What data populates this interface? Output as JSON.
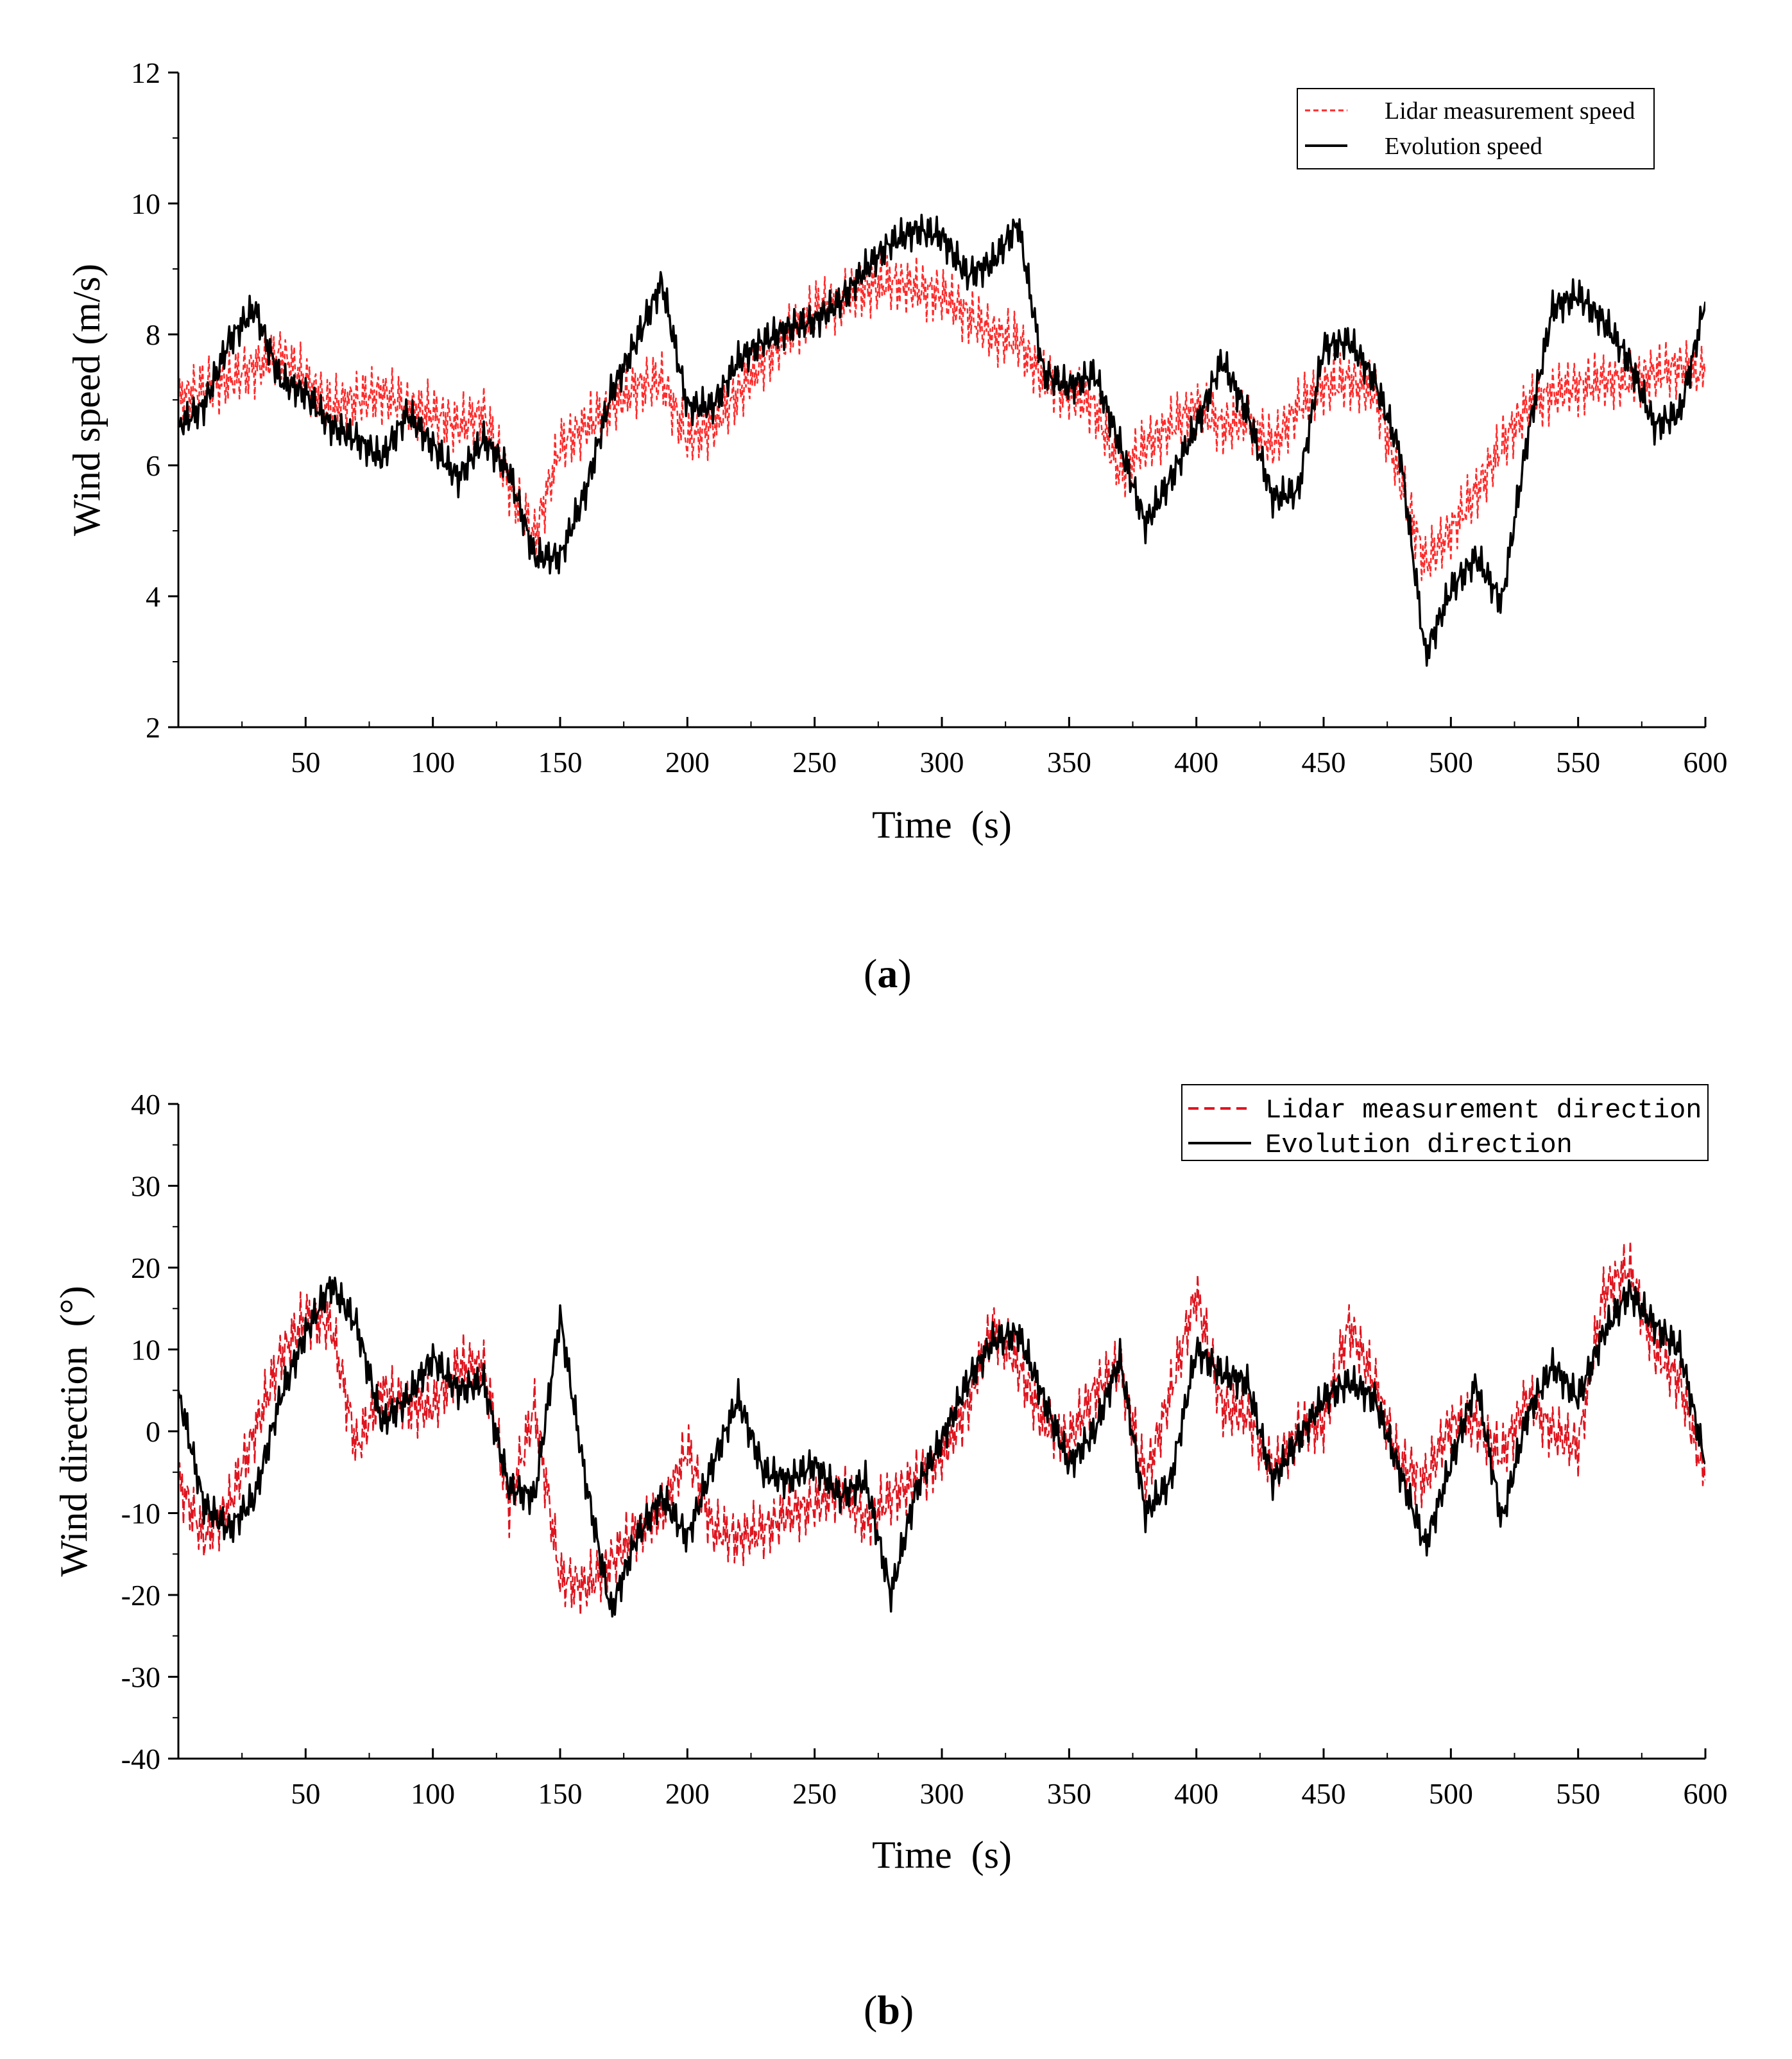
{
  "chart_data": [
    {
      "type": "line",
      "panel": "a",
      "xlabel": "Time  (s)",
      "ylabel": "Wind speed (m/s)",
      "xlim": [
        0,
        600
      ],
      "ylim": [
        2,
        12
      ],
      "xticks": [
        50,
        100,
        150,
        200,
        250,
        300,
        350,
        400,
        450,
        500,
        550,
        600
      ],
      "yticks": [
        2,
        4,
        6,
        8,
        10,
        12
      ],
      "grid": false,
      "legend_position": "top-right",
      "series": [
        {
          "name": "Lidar measurement speed",
          "color": "#ff2a2a",
          "style": "dashed",
          "x": [
            0,
            10,
            20,
            30,
            40,
            50,
            60,
            70,
            80,
            90,
            100,
            110,
            120,
            130,
            140,
            150,
            160,
            170,
            180,
            190,
            200,
            210,
            220,
            230,
            240,
            250,
            260,
            270,
            280,
            290,
            300,
            310,
            320,
            330,
            340,
            350,
            360,
            370,
            380,
            390,
            400,
            410,
            420,
            430,
            440,
            450,
            460,
            470,
            480,
            490,
            500,
            510,
            520,
            530,
            540,
            550,
            560,
            570,
            580,
            590,
            600
          ],
          "values": [
            7.0,
            7.2,
            7.3,
            7.5,
            7.7,
            7.3,
            6.9,
            7.0,
            7.1,
            6.9,
            6.8,
            6.6,
            6.8,
            5.7,
            4.9,
            6.3,
            6.6,
            6.9,
            7.2,
            7.3,
            6.4,
            6.6,
            7.1,
            7.6,
            8.0,
            8.4,
            8.5,
            8.7,
            8.8,
            8.7,
            8.6,
            8.3,
            8.0,
            7.9,
            7.3,
            7.1,
            6.9,
            5.9,
            6.3,
            6.6,
            6.9,
            6.6,
            6.7,
            6.3,
            6.9,
            7.2,
            7.3,
            7.1,
            5.8,
            4.5,
            5.0,
            5.6,
            6.3,
            6.9,
            7.1,
            7.2,
            7.3,
            7.3,
            7.4,
            7.5,
            7.4
          ]
        },
        {
          "name": "Evolution speed",
          "color": "#000000",
          "style": "solid",
          "x": [
            0,
            10,
            20,
            30,
            40,
            50,
            60,
            70,
            80,
            90,
            100,
            110,
            120,
            130,
            140,
            150,
            160,
            170,
            180,
            190,
            200,
            210,
            220,
            230,
            240,
            250,
            260,
            270,
            280,
            290,
            300,
            310,
            320,
            330,
            340,
            350,
            360,
            370,
            380,
            390,
            400,
            410,
            420,
            430,
            440,
            450,
            460,
            470,
            480,
            490,
            500,
            510,
            520,
            530,
            540,
            550,
            560,
            570,
            580,
            590,
            600
          ],
          "values": [
            6.6,
            6.9,
            7.9,
            8.4,
            7.3,
            7.1,
            6.6,
            6.4,
            6.1,
            6.8,
            6.3,
            5.8,
            6.4,
            5.9,
            4.6,
            4.6,
            5.6,
            7.1,
            7.9,
            8.8,
            6.9,
            6.9,
            7.6,
            7.9,
            8.1,
            8.2,
            8.5,
            9.0,
            9.4,
            9.6,
            9.5,
            8.9,
            9.1,
            9.7,
            7.4,
            7.2,
            7.4,
            6.3,
            5.1,
            5.8,
            6.6,
            7.6,
            6.8,
            5.5,
            5.6,
            7.8,
            7.9,
            7.3,
            6.2,
            3.1,
            4.1,
            4.6,
            3.9,
            6.4,
            8.4,
            8.6,
            8.2,
            7.6,
            6.6,
            6.8,
            8.5
          ]
        }
      ]
    },
    {
      "type": "line",
      "panel": "b",
      "xlabel": "Time  (s)",
      "ylabel": "Wind direction  (°)",
      "xlim": [
        0,
        600
      ],
      "ylim": [
        -40,
        40
      ],
      "xticks": [
        50,
        100,
        150,
        200,
        250,
        300,
        350,
        400,
        450,
        500,
        550,
        600
      ],
      "yticks": [
        -40,
        -30,
        -20,
        -10,
        0,
        10,
        20,
        30,
        40
      ],
      "grid": false,
      "legend_position": "top-right",
      "series": [
        {
          "name": "Lidar measurement direction",
          "color": "#e0141e",
          "style": "dashed",
          "x": [
            0,
            10,
            20,
            30,
            40,
            50,
            60,
            70,
            80,
            90,
            100,
            110,
            120,
            130,
            140,
            150,
            160,
            170,
            180,
            190,
            200,
            210,
            220,
            230,
            240,
            250,
            260,
            270,
            280,
            290,
            300,
            310,
            320,
            330,
            340,
            350,
            360,
            370,
            380,
            390,
            400,
            410,
            420,
            430,
            440,
            450,
            460,
            470,
            480,
            490,
            500,
            510,
            520,
            530,
            540,
            550,
            560,
            570,
            580,
            590,
            600
          ],
          "values": [
            -6,
            -13,
            -9,
            0,
            9,
            14,
            13,
            -2,
            5,
            3,
            3,
            8,
            8,
            -9,
            3,
            -18,
            -19,
            -16,
            -12,
            -10,
            -2,
            -12,
            -13,
            -12,
            -10,
            -9,
            -7,
            -11,
            -8,
            -6,
            -3,
            3,
            13,
            8,
            1,
            -1,
            5,
            8,
            -6,
            5,
            17,
            3,
            2,
            -5,
            0,
            1,
            13,
            6,
            -4,
            -6,
            1,
            1,
            -3,
            4,
            0,
            -2,
            17,
            20,
            10,
            6,
            -6
          ]
        },
        {
          "name": "Evolution direction",
          "color": "#000000",
          "style": "solid",
          "x": [
            0,
            10,
            20,
            30,
            40,
            50,
            60,
            70,
            80,
            90,
            100,
            110,
            120,
            130,
            140,
            150,
            160,
            170,
            180,
            190,
            200,
            210,
            220,
            230,
            240,
            250,
            260,
            270,
            280,
            290,
            300,
            310,
            320,
            330,
            340,
            350,
            360,
            370,
            380,
            390,
            400,
            410,
            420,
            430,
            440,
            450,
            460,
            470,
            480,
            490,
            500,
            510,
            520,
            530,
            540,
            550,
            560,
            570,
            580,
            590,
            600
          ],
          "values": [
            5,
            -9,
            -12,
            -8,
            4,
            12,
            18,
            13,
            1,
            4,
            9,
            5,
            6,
            -7,
            -8,
            14,
            -6,
            -22,
            -13,
            -8,
            -13,
            -4,
            4,
            -5,
            -6,
            -4,
            -8,
            -6,
            -20,
            -7,
            -1,
            6,
            11,
            12,
            4,
            -4,
            0,
            9,
            -10,
            -6,
            10,
            7,
            6,
            -6,
            -1,
            4,
            6,
            4,
            -5,
            -14,
            -4,
            6,
            -11,
            2,
            8,
            4,
            12,
            17,
            13,
            10,
            -4
          ]
        }
      ]
    }
  ],
  "captions": {
    "a": {
      "open": "(",
      "letter": "a",
      "close": ")"
    },
    "b": {
      "open": "(",
      "letter": "b",
      "close": ")"
    }
  }
}
